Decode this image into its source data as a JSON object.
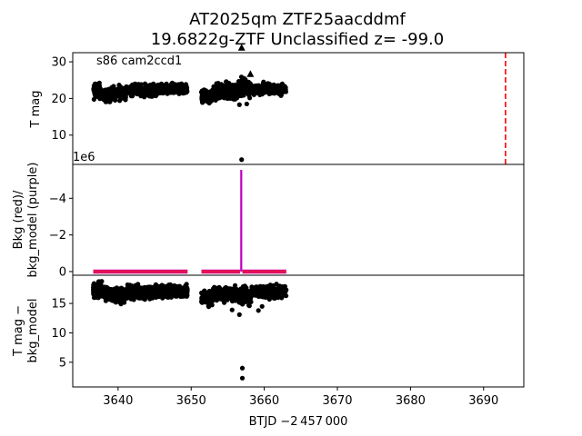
{
  "figure": {
    "title_line1": "AT2025qm  ZTF25aacddmf",
    "title_line2": "19.6822g-ZTF Unclassified z= -99.0",
    "xlabel": "BTJD −2 457 000"
  },
  "chart_data": [
    {
      "type": "scatter",
      "panel": "top",
      "annotation": "s86 cam2ccd1",
      "ylabel": "T mag",
      "y_inverted": true,
      "xlim": [
        3633.8,
        3695.5
      ],
      "ylim": [
        32.5,
        2.0
      ],
      "yticks": [
        10,
        20,
        30
      ],
      "xticks": [],
      "bands": [
        {
          "x0": 3636.6,
          "x1": 3637.8,
          "center": 22.0,
          "spread": 3.0
        },
        {
          "x0": 3638.0,
          "x1": 3639.1,
          "center": 20.8,
          "spread": 2.5
        },
        {
          "x0": 3639.1,
          "x1": 3641.2,
          "center": 21.6,
          "spread": 2.6
        },
        {
          "x0": 3641.2,
          "x1": 3645.6,
          "center": 22.3,
          "spread": 2.2
        },
        {
          "x0": 3645.6,
          "x1": 3649.5,
          "center": 22.5,
          "spread": 2.0
        },
        {
          "x0": 3651.4,
          "x1": 3652.9,
          "center": 20.5,
          "spread": 2.6
        },
        {
          "x0": 3652.9,
          "x1": 3656.5,
          "center": 21.8,
          "spread": 3.2
        },
        {
          "x0": 3656.5,
          "x1": 3658.2,
          "center": 23.0,
          "spread": 4.0
        },
        {
          "x0": 3658.2,
          "x1": 3663.0,
          "center": 22.5,
          "spread": 2.0
        }
      ],
      "outliers": [
        {
          "x": 3656.9,
          "y": 3.3
        },
        {
          "x": 3656.6,
          "y": 18.3
        },
        {
          "x": 3657.6,
          "y": 18.5
        },
        {
          "x": 3655.8,
          "y": 19.8
        },
        {
          "x": 3659.4,
          "y": 21.0
        },
        {
          "x": 3659.9,
          "y": 24.5
        }
      ],
      "triangles": [
        {
          "x": 3657.3,
          "y": 25.0
        },
        {
          "x": 3658.1,
          "y": 26.6
        },
        {
          "x": 3656.9,
          "y": 33.8
        }
      ],
      "vline": {
        "x": 3693.0,
        "color": "#ff0000",
        "style": "dashed"
      }
    },
    {
      "type": "line",
      "panel": "middle",
      "ylabel_line1": "Bkg (red)/",
      "ylabel_line2": "bkg_model (purple)",
      "offset_text": "1e6",
      "xlim": [
        3633.8,
        3695.5
      ],
      "ylim": [
        -5.85,
        0.2
      ],
      "yticks": [
        0,
        -2,
        -4
      ],
      "xticks": [],
      "segments": [
        [
          3636.6,
          3649.5
        ],
        [
          3651.4,
          3656.7
        ],
        [
          3657.0,
          3663.0
        ]
      ],
      "spike": {
        "x": 3656.85,
        "min": -5.55
      },
      "series": [
        {
          "color": "#ff0000",
          "values": [
            0,
            0
          ]
        },
        {
          "color": "#bf00bf",
          "values": [
            0,
            -5.55
          ]
        }
      ]
    },
    {
      "type": "scatter",
      "panel": "bottom",
      "ylabel_line1": "T mag −",
      "ylabel_line2": "bkg_model",
      "y_inverted": true,
      "xlim": [
        3633.8,
        3695.5
      ],
      "ylim": [
        19.8,
        0.8
      ],
      "yticks": [
        5,
        10,
        15
      ],
      "xticks": [
        3640,
        3650,
        3660,
        3670,
        3680,
        3690
      ],
      "bands": [
        {
          "x0": 3636.6,
          "x1": 3637.8,
          "center": 17.3,
          "spread": 1.8
        },
        {
          "x0": 3638.0,
          "x1": 3639.1,
          "center": 16.6,
          "spread": 1.6
        },
        {
          "x0": 3639.1,
          "x1": 3641.2,
          "center": 16.4,
          "spread": 1.7
        },
        {
          "x0": 3641.2,
          "x1": 3645.6,
          "center": 16.9,
          "spread": 1.6
        },
        {
          "x0": 3645.6,
          "x1": 3649.5,
          "center": 17.1,
          "spread": 1.5
        },
        {
          "x0": 3651.4,
          "x1": 3652.9,
          "center": 16.0,
          "spread": 1.8
        },
        {
          "x0": 3652.9,
          "x1": 3656.5,
          "center": 16.6,
          "spread": 1.8
        },
        {
          "x0": 3656.5,
          "x1": 3658.2,
          "center": 16.1,
          "spread": 2.2
        },
        {
          "x0": 3658.2,
          "x1": 3663.0,
          "center": 17.0,
          "spread": 1.5
        }
      ],
      "outliers": [
        {
          "x": 3657.0,
          "y": 2.3
        },
        {
          "x": 3657.0,
          "y": 4.0
        },
        {
          "x": 3656.6,
          "y": 13.1
        },
        {
          "x": 3655.6,
          "y": 13.9
        },
        {
          "x": 3659.2,
          "y": 13.8
        },
        {
          "x": 3659.7,
          "y": 14.5
        }
      ]
    }
  ]
}
